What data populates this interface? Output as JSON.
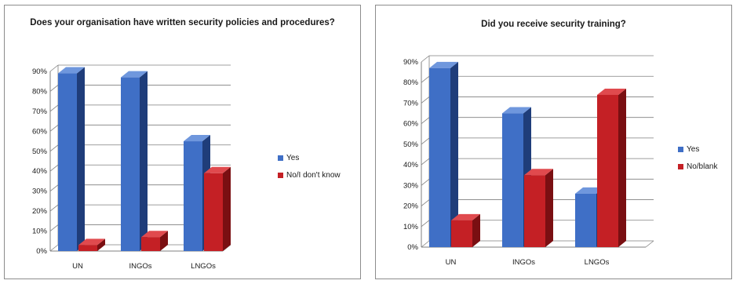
{
  "chart_data": [
    {
      "type": "bar",
      "title": "Does your organisation have written security policies and procedures?",
      "categories": [
        "UN",
        "INGOs",
        "LNGOs"
      ],
      "series": [
        {
          "name": "Yes",
          "values": [
            89,
            87,
            55
          ]
        },
        {
          "name": "No/I don't know",
          "values": [
            3,
            7,
            39
          ]
        }
      ],
      "ylim": [
        0,
        90
      ],
      "yticks": [
        "0%",
        "10%",
        "20%",
        "30%",
        "40%",
        "50%",
        "60%",
        "70%",
        "80%",
        "90%"
      ],
      "grid": true,
      "legend": "right"
    },
    {
      "type": "bar",
      "title": "Did you receive security training?",
      "categories": [
        "UN",
        "INGOs",
        "LNGOs"
      ],
      "series": [
        {
          "name": "Yes",
          "values": [
            87,
            65,
            26
          ]
        },
        {
          "name": "No/blank",
          "values": [
            13,
            35,
            74
          ]
        }
      ],
      "ylim": [
        0,
        90
      ],
      "yticks": [
        "0%",
        "10%",
        "20%",
        "30%",
        "40%",
        "50%",
        "60%",
        "70%",
        "80%",
        "90%"
      ],
      "grid": true,
      "legend": "right"
    }
  ],
  "colors": {
    "series_1_front": "#3f6fc6",
    "series_1_side": "#1f3d7a",
    "series_1_top": "#6f97dd",
    "series_2_front": "#c42025",
    "series_2_side": "#7a0f12",
    "series_2_top": "#e04a4e",
    "grid": "#7f7f7f"
  }
}
